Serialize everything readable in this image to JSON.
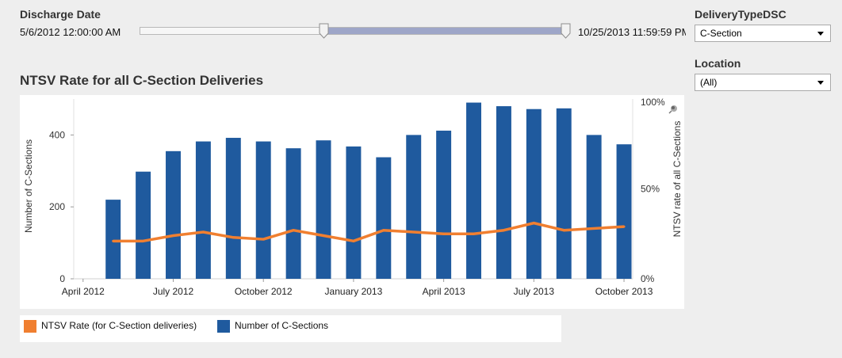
{
  "filters": {
    "discharge_label": "Discharge Date",
    "range_start": "5/6/2012 12:00:00 AM",
    "range_end": "10/25/2013 11:59:59 PM",
    "delivery_label": "DeliveryTypeDSC",
    "delivery_value": "C-Section",
    "location_label": "Location",
    "location_value": "(All)"
  },
  "colors": {
    "bar": "#1f5a9e",
    "line": "#f07f30",
    "slider_fill": "#9ea6c8"
  },
  "chart_data": {
    "type": "bar",
    "title": "NTSV Rate for all C-Section Deliveries",
    "ylabel": "Number of C-Sections",
    "y2label": "NTSV rate of all C-Sections",
    "ylim": [
      0,
      500
    ],
    "y2lim": [
      0,
      1
    ],
    "yticks": [
      "0",
      "200",
      "400"
    ],
    "y2ticks": [
      "0%",
      "50%",
      "100%"
    ],
    "xtick_labels": [
      "April 2012",
      "July 2012",
      "October 2012",
      "January 2013",
      "April 2013",
      "July 2013",
      "October 2013"
    ],
    "x": [
      "2012-04",
      "2012-05",
      "2012-06",
      "2012-07",
      "2012-08",
      "2012-09",
      "2012-10",
      "2012-11",
      "2012-12",
      "2013-01",
      "2013-02",
      "2013-03",
      "2013-04",
      "2013-05",
      "2013-06",
      "2013-07",
      "2013-08",
      "2013-09",
      "2013-10"
    ],
    "series": [
      {
        "name": "Number of C-Sections",
        "type": "bar",
        "axis": "left",
        "values": [
          null,
          220,
          298,
          355,
          382,
          392,
          382,
          363,
          385,
          368,
          338,
          400,
          412,
          490,
          480,
          472,
          474,
          400,
          374
        ]
      },
      {
        "name": "NTSV Rate (for C-Section deliveries)",
        "type": "line",
        "axis": "right",
        "values": [
          null,
          0.21,
          0.21,
          0.24,
          0.26,
          0.23,
          0.22,
          0.27,
          0.24,
          0.21,
          0.27,
          0.26,
          0.25,
          0.25,
          0.27,
          0.31,
          0.27,
          0.28,
          0.29
        ]
      }
    ],
    "legend": "bottom-left"
  }
}
